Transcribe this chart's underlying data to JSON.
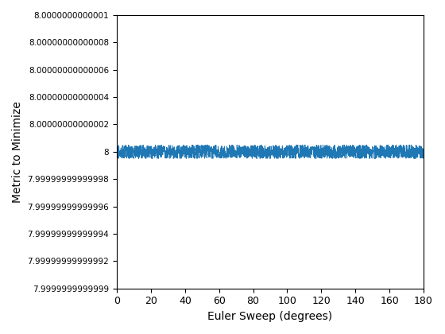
{
  "xlabel": "Euler Sweep (degrees)",
  "ylabel": "Metric to Minimize",
  "x_start": 0,
  "x_end": 180,
  "num_points": 1800,
  "y_noise_amplitude": 0.5,
  "line_color": "#1f77b4",
  "line_width": 0.8,
  "ytick_scaled": [
    -10,
    -8,
    -6,
    -4,
    -2,
    0,
    2,
    4,
    6,
    8,
    10
  ],
  "ytick_labels": [
    "7.9999999999999",
    "7.99999999999992",
    "7.99999999999994",
    "7.99999999999996",
    "7.99999999999998",
    "8",
    "8.00000000000002",
    "8.00000000000004",
    "8.00000000000006",
    "8.00000000000008",
    "8.0000000000001"
  ],
  "ylim_bottom": -10,
  "ylim_top": 10,
  "xticks": [
    0,
    20,
    40,
    60,
    80,
    100,
    120,
    140,
    160,
    180
  ],
  "figsize": [
    5.6,
    4.2
  ],
  "dpi": 100
}
